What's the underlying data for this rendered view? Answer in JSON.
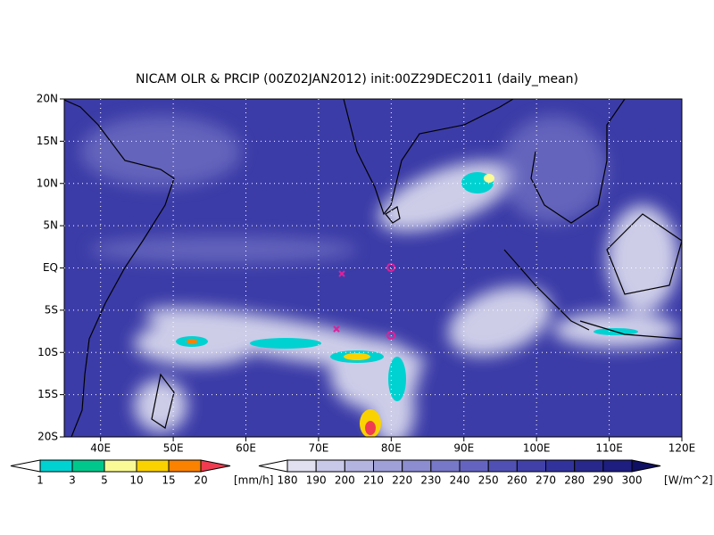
{
  "title": "NICAM OLR & PRCIP (00Z02JAN2012) init:00Z29DEC2011 (daily_mean)",
  "map": {
    "lon_range": [
      35,
      120
    ],
    "lat_range": [
      -20,
      20
    ],
    "lon_ticks": [
      {
        "value": 40,
        "label": "40E"
      },
      {
        "value": 50,
        "label": "50E"
      },
      {
        "value": 60,
        "label": "60E"
      },
      {
        "value": 70,
        "label": "70E"
      },
      {
        "value": 80,
        "label": "80E"
      },
      {
        "value": 90,
        "label": "90E"
      },
      {
        "value": 100,
        "label": "100E"
      },
      {
        "value": 110,
        "label": "110E"
      },
      {
        "value": 120,
        "label": "120E"
      }
    ],
    "lat_ticks": [
      {
        "value": -20,
        "label": "20S"
      },
      {
        "value": -15,
        "label": "15S"
      },
      {
        "value": -10,
        "label": "10S"
      },
      {
        "value": -5,
        "label": "5S"
      },
      {
        "value": 0,
        "label": "EQ"
      },
      {
        "value": 5,
        "label": "5N"
      },
      {
        "value": 10,
        "label": "10N"
      },
      {
        "value": 15,
        "label": "15N"
      },
      {
        "value": 20,
        "label": "20N"
      }
    ]
  },
  "precip_legend": {
    "levels": [
      1,
      3,
      5,
      10,
      15,
      20
    ],
    "colors": [
      "#ffffff",
      "#00d2d2",
      "#00c88c",
      "#fafa96",
      "#fad200",
      "#fa8200",
      "#f03c50"
    ],
    "unit": "[mm/h]"
  },
  "olr_legend": {
    "levels": [
      180,
      190,
      200,
      210,
      220,
      230,
      240,
      250,
      260,
      270,
      280,
      290,
      300
    ],
    "colors": [
      "#ffffff",
      "#e0e0f0",
      "#c8c8e8",
      "#b4b4e0",
      "#a0a0d8",
      "#8c8cd0",
      "#7878c8",
      "#6464c0",
      "#5050b4",
      "#4040a8",
      "#32329c",
      "#28288c",
      "#1e1e80",
      "#0f0f64"
    ],
    "unit": "[W/m^2]"
  }
}
